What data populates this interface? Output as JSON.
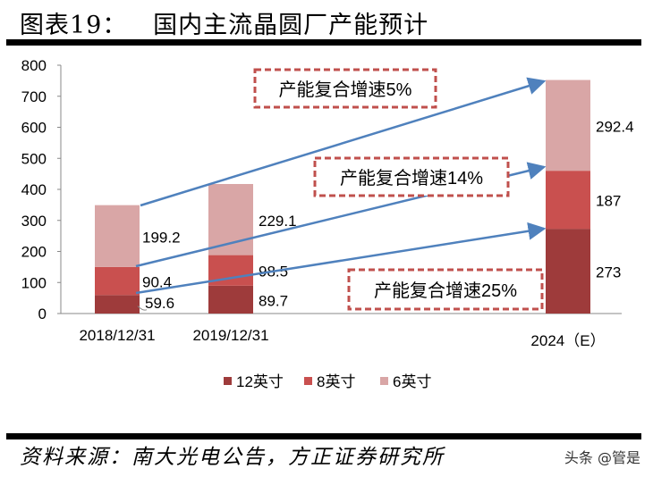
{
  "title": "图表19：   国内主流晶圆厂产能预计",
  "source": "资料来源：南大光电公告，方正证券研究所",
  "watermark": "头条 @管是",
  "chart_data": {
    "type": "bar",
    "stacked": true,
    "categories": [
      "2018/12/31",
      "2019/12/31",
      "2024（E）"
    ],
    "series": [
      {
        "name": "12英寸",
        "values": [
          59.6,
          89.7,
          273
        ],
        "color": "#9e3b3b"
      },
      {
        "name": "8英寸",
        "values": [
          90.4,
          98.5,
          187
        ],
        "color": "#c9504f"
      },
      {
        "name": "6英寸",
        "values": [
          199.2,
          229.1,
          292.4
        ],
        "color": "#d9a6a6"
      }
    ],
    "ylim": [
      0,
      800
    ],
    "yticks": [
      0,
      100,
      200,
      300,
      400,
      500,
      600,
      700,
      800
    ],
    "grid": false,
    "legend": "bottom",
    "annotations": [
      {
        "text": "产能复合增速5%",
        "series": "6英寸"
      },
      {
        "text": "产能复合增速14%",
        "series": "8英寸"
      },
      {
        "text": "产能复合增速25%",
        "series": "12英寸"
      }
    ],
    "arrow_color": "#4f81bd",
    "box_color": "#c0504d"
  }
}
